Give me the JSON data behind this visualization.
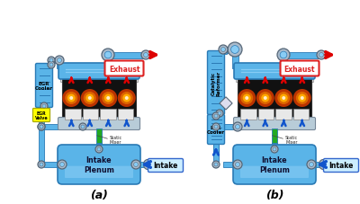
{
  "background_color": "#ffffff",
  "fig_width": 4.0,
  "fig_height": 2.28,
  "dpi": 100,
  "label_a": "(a)",
  "label_b": "(b)",
  "exhaust_text": "Exhaust",
  "intake_text": "Intake",
  "intake_plenum_text": "Intake\nPlenum",
  "static_mixer_text": "Static\nMixer",
  "egr_cooler_text": "EGR\nCooler",
  "egr_valve_text": "EGR\nValve",
  "catalytic_reformer_text": "Catalytic\nReformer",
  "pipe_color": "#5ab4e8",
  "pipe_dark": "#2a7ab5",
  "pipe_light": "#88ccf5",
  "engine_body_color": "#b8ccd8",
  "engine_black": "#111111",
  "piston_glow_outer": "#bb3300",
  "piston_glow_mid": "#dd6600",
  "piston_glow_inner": "#ffaa00",
  "piston_glow_center": "#ffeecc",
  "red_arrow_color": "#dd0000",
  "blue_arrow_color": "#1155cc",
  "green_pipe_color": "#22aa22",
  "exhaust_box_facecolor": "#ffffff",
  "exhaust_box_edgecolor": "#dd2222",
  "exhaust_text_color": "#dd2222",
  "intake_box_facecolor": "#cceeff",
  "intake_box_edgecolor": "#3366cc",
  "egr_valve_color": "#ffff00",
  "egr_valve_edge": "#aaaa00",
  "connector_face": "#aabbcc",
  "connector_edge": "#556677",
  "white_band_color": "#e8e8e8"
}
